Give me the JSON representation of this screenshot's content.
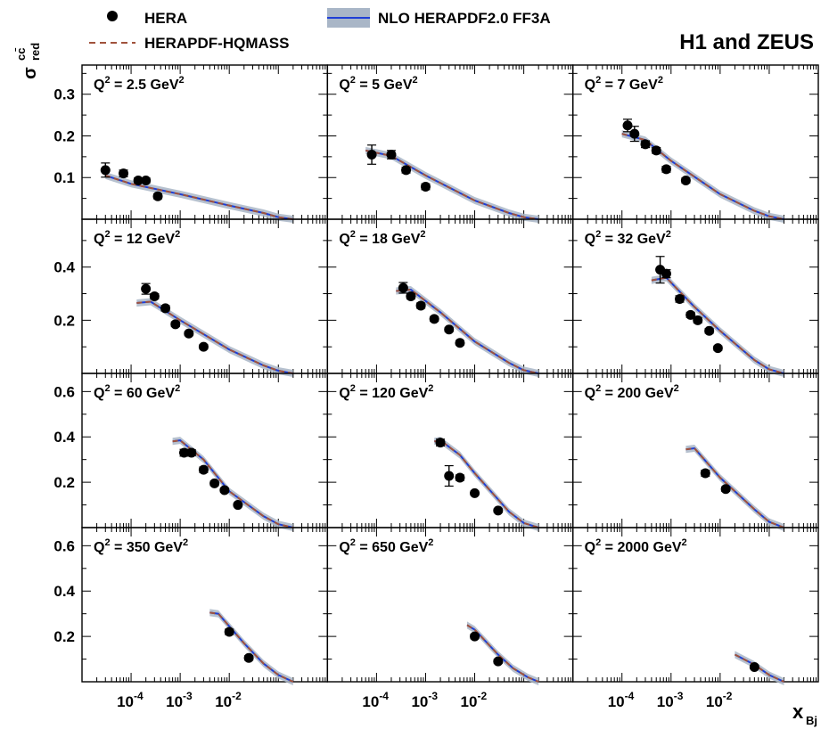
{
  "figure": {
    "experiment": "H1 and ZEUS",
    "xlabel": "x",
    "xlabel_sub": "Bj",
    "ylabel": "σ",
    "ylabel_sup": "cc̄",
    "ylabel_sub": "red",
    "x_tick_labels": [
      {
        "base": "10",
        "exp": "-4"
      },
      {
        "base": "10",
        "exp": "-3"
      },
      {
        "base": "10",
        "exp": "-2"
      }
    ]
  },
  "legend": {
    "entries": [
      {
        "label": "HERA",
        "style": "marker"
      },
      {
        "label": "NLO HERAPDF2.0 FF3A",
        "style": "band"
      },
      {
        "label": "HERAPDF-HQMASS",
        "style": "dashed"
      }
    ],
    "placement": "top"
  },
  "colors": {
    "data": "#000000",
    "nlo_line": "#1f3fd6",
    "nlo_band": "#a9b6c7",
    "hqmass": "#a0523c"
  },
  "chart_data": {
    "type": "scatter",
    "x_scale": "log",
    "xlim": [
      1e-05,
      1.0
    ],
    "rows": [
      {
        "ylim": [
          0,
          0.37
        ],
        "yticks": [
          0.1,
          0.2,
          0.3
        ],
        "ytick_labels": [
          "0.1",
          "0.2",
          "0.3"
        ]
      },
      {
        "ylim": [
          0,
          0.58
        ],
        "yticks": [
          0.2,
          0.4
        ],
        "ytick_labels": [
          "0.2",
          "0.4"
        ]
      },
      {
        "ylim": [
          0,
          0.68
        ],
        "yticks": [
          0.2,
          0.4,
          0.6
        ],
        "ytick_labels": [
          "0.2",
          "0.4",
          "0.6"
        ]
      },
      {
        "ylim": [
          0,
          0.68
        ],
        "yticks": [
          0.2,
          0.4,
          0.6
        ],
        "ytick_labels": [
          "0.2",
          "0.4",
          "0.6"
        ]
      }
    ],
    "panels": [
      {
        "q2_label": "2.5",
        "points": [
          [
            3e-05,
            0.118
          ],
          [
            7e-05,
            0.11
          ],
          [
            0.00014,
            0.093
          ],
          [
            0.0002,
            0.093
          ],
          [
            0.00035,
            0.055
          ]
        ],
        "errors": [
          0.017,
          0.008,
          0.006,
          0.006,
          0.006
        ],
        "curve": [
          [
            3e-05,
            0.105
          ],
          [
            0.0001,
            0.085
          ],
          [
            0.001,
            0.06
          ],
          [
            0.01,
            0.033
          ],
          [
            0.05,
            0.015
          ],
          [
            0.1,
            0.005
          ],
          [
            0.2,
            0.0
          ]
        ]
      },
      {
        "q2_label": "5",
        "points": [
          [
            8e-05,
            0.155
          ],
          [
            0.0002,
            0.155
          ],
          [
            0.0004,
            0.118
          ],
          [
            0.001,
            0.078
          ]
        ],
        "errors": [
          0.023,
          0.01,
          0.007,
          0.007
        ],
        "curve": [
          [
            6e-05,
            0.165
          ],
          [
            0.0002,
            0.152
          ],
          [
            0.001,
            0.105
          ],
          [
            0.01,
            0.045
          ],
          [
            0.05,
            0.015
          ],
          [
            0.1,
            0.005
          ],
          [
            0.2,
            0.0
          ]
        ]
      },
      {
        "q2_label": "7",
        "points": [
          [
            0.00013,
            0.225
          ],
          [
            0.00018,
            0.205
          ],
          [
            0.0003,
            0.18
          ],
          [
            0.0005,
            0.165
          ],
          [
            0.0008,
            0.12
          ],
          [
            0.002,
            0.093
          ]
        ],
        "errors": [
          0.015,
          0.018,
          0.008,
          0.007,
          0.007,
          0.006
        ],
        "curve": [
          [
            0.0001,
            0.205
          ],
          [
            0.0003,
            0.19
          ],
          [
            0.001,
            0.14
          ],
          [
            0.01,
            0.06
          ],
          [
            0.05,
            0.02
          ],
          [
            0.1,
            0.007
          ],
          [
            0.2,
            0.0
          ]
        ]
      },
      {
        "q2_label": "12",
        "points": [
          [
            0.0002,
            0.318
          ],
          [
            0.0003,
            0.29
          ],
          [
            0.0005,
            0.245
          ],
          [
            0.0008,
            0.185
          ],
          [
            0.0015,
            0.15
          ],
          [
            0.003,
            0.1
          ]
        ],
        "errors": [
          0.02,
          0.01,
          0.01,
          0.009,
          0.008,
          0.008
        ],
        "curve": [
          [
            0.00013,
            0.265
          ],
          [
            0.00025,
            0.27
          ],
          [
            0.001,
            0.2
          ],
          [
            0.01,
            0.09
          ],
          [
            0.05,
            0.03
          ],
          [
            0.1,
            0.01
          ],
          [
            0.2,
            0.0
          ]
        ]
      },
      {
        "q2_label": "18",
        "points": [
          [
            0.00035,
            0.322
          ],
          [
            0.0005,
            0.29
          ],
          [
            0.0008,
            0.255
          ],
          [
            0.0015,
            0.205
          ],
          [
            0.003,
            0.165
          ],
          [
            0.005,
            0.115
          ]
        ],
        "errors": [
          0.02,
          0.01,
          0.01,
          0.009,
          0.008,
          0.008
        ],
        "curve": [
          [
            0.00025,
            0.31
          ],
          [
            0.0005,
            0.315
          ],
          [
            0.002,
            0.23
          ],
          [
            0.01,
            0.12
          ],
          [
            0.05,
            0.04
          ],
          [
            0.1,
            0.012
          ],
          [
            0.2,
            0.0
          ]
        ]
      },
      {
        "q2_label": "32",
        "points": [
          [
            0.0006,
            0.39
          ],
          [
            0.0008,
            0.375
          ],
          [
            0.0015,
            0.28
          ],
          [
            0.0025,
            0.22
          ],
          [
            0.0035,
            0.2
          ],
          [
            0.006,
            0.16
          ],
          [
            0.009,
            0.095
          ]
        ],
        "errors": [
          0.05,
          0.015,
          0.012,
          0.01,
          0.01,
          0.009,
          0.008
        ],
        "curve": [
          [
            0.0004,
            0.35
          ],
          [
            0.0008,
            0.36
          ],
          [
            0.003,
            0.25
          ],
          [
            0.01,
            0.16
          ],
          [
            0.05,
            0.05
          ],
          [
            0.1,
            0.015
          ],
          [
            0.2,
            0.0
          ]
        ]
      },
      {
        "q2_label": "60",
        "points": [
          [
            0.0012,
            0.33
          ],
          [
            0.0017,
            0.33
          ],
          [
            0.003,
            0.255
          ],
          [
            0.005,
            0.195
          ],
          [
            0.008,
            0.165
          ],
          [
            0.015,
            0.1
          ]
        ],
        "errors": [
          0.015,
          0.013,
          0.012,
          0.01,
          0.009,
          0.008
        ],
        "curve": [
          [
            0.0007,
            0.38
          ],
          [
            0.001,
            0.385
          ],
          [
            0.003,
            0.3
          ],
          [
            0.01,
            0.16
          ],
          [
            0.05,
            0.05
          ],
          [
            0.1,
            0.015
          ],
          [
            0.2,
            0.0
          ]
        ]
      },
      {
        "q2_label": "120",
        "points": [
          [
            0.002,
            0.375
          ],
          [
            0.003,
            0.228
          ],
          [
            0.005,
            0.22
          ],
          [
            0.01,
            0.152
          ],
          [
            0.03,
            0.075
          ]
        ],
        "errors": [
          0.015,
          0.045,
          0.012,
          0.009,
          0.008
        ],
        "curve": [
          [
            0.0015,
            0.38
          ],
          [
            0.002,
            0.385
          ],
          [
            0.005,
            0.32
          ],
          [
            0.01,
            0.24
          ],
          [
            0.05,
            0.07
          ],
          [
            0.1,
            0.02
          ],
          [
            0.2,
            0.0
          ]
        ]
      },
      {
        "q2_label": "200",
        "points": [
          [
            0.005,
            0.24
          ],
          [
            0.013,
            0.17
          ]
        ],
        "errors": [
          0.013,
          0.01
        ],
        "curve": [
          [
            0.002,
            0.345
          ],
          [
            0.003,
            0.35
          ],
          [
            0.01,
            0.22
          ],
          [
            0.05,
            0.08
          ],
          [
            0.1,
            0.025
          ],
          [
            0.2,
            0.0
          ]
        ]
      },
      {
        "q2_label": "350",
        "points": [
          [
            0.01,
            0.22
          ],
          [
            0.025,
            0.105
          ]
        ],
        "errors": [
          0.012,
          0.01
        ],
        "curve": [
          [
            0.004,
            0.305
          ],
          [
            0.006,
            0.3
          ],
          [
            0.02,
            0.17
          ],
          [
            0.05,
            0.08
          ],
          [
            0.1,
            0.03
          ],
          [
            0.2,
            0.0
          ]
        ]
      },
      {
        "q2_label": "650",
        "points": [
          [
            0.01,
            0.2
          ],
          [
            0.03,
            0.09
          ]
        ],
        "errors": [
          0.01,
          0.009
        ],
        "curve": [
          [
            0.007,
            0.25
          ],
          [
            0.01,
            0.23
          ],
          [
            0.03,
            0.12
          ],
          [
            0.06,
            0.06
          ],
          [
            0.12,
            0.02
          ],
          [
            0.2,
            0.0
          ]
        ]
      },
      {
        "q2_label": "2000",
        "points": [
          [
            0.05,
            0.065
          ]
        ],
        "errors": [
          0.008
        ],
        "curve": [
          [
            0.02,
            0.12
          ],
          [
            0.05,
            0.075
          ],
          [
            0.1,
            0.03
          ],
          [
            0.2,
            0.0
          ]
        ]
      }
    ]
  }
}
